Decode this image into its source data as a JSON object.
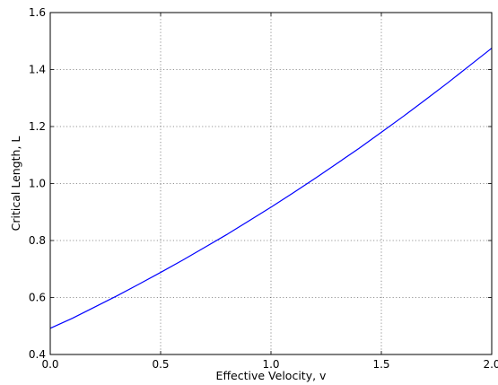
{
  "chart_data": {
    "type": "line",
    "title": "",
    "xlabel": "Effective Velocity, v",
    "ylabel": "Critical Length, L",
    "xlim": [
      0.0,
      2.0
    ],
    "ylim": [
      0.4,
      1.6
    ],
    "xticks": [
      0.0,
      0.5,
      1.0,
      1.5,
      2.0
    ],
    "xtick_labels": [
      "0.0",
      "0.5",
      "1.0",
      "1.5",
      "2.0"
    ],
    "yticks": [
      0.4,
      0.6,
      0.8,
      1.0,
      1.2,
      1.4,
      1.6
    ],
    "ytick_labels": [
      "0.4",
      "0.6",
      "0.8",
      "1.0",
      "1.2",
      "1.4",
      "1.6"
    ],
    "grid": true,
    "series": [
      {
        "color": "#0000ff",
        "x": [
          0.0,
          0.1,
          0.2,
          0.3,
          0.4,
          0.5,
          0.6,
          0.7,
          0.8,
          0.9,
          1.0,
          1.1,
          1.2,
          1.3,
          1.4,
          1.5,
          1.6,
          1.7,
          1.8,
          1.9,
          2.0
        ],
        "y": [
          0.492,
          0.527,
          0.566,
          0.605,
          0.646,
          0.688,
          0.731,
          0.776,
          0.821,
          0.869,
          0.917,
          0.967,
          1.018,
          1.071,
          1.124,
          1.18,
          1.236,
          1.294,
          1.353,
          1.414,
          1.475
        ]
      }
    ]
  }
}
